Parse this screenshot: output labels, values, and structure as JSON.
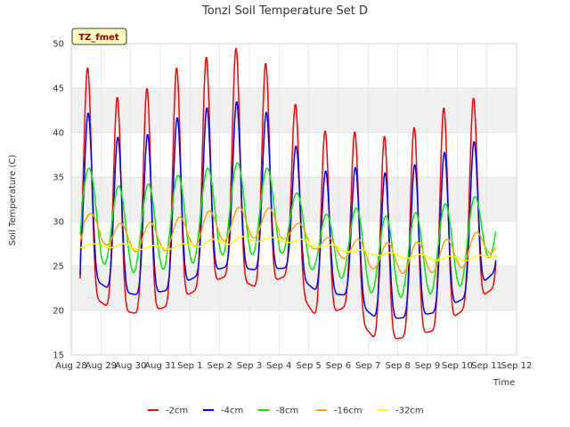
{
  "chart_data": {
    "type": "line",
    "title": "Tonzi Soil Temperature Set D",
    "xlabel": "Time",
    "ylabel": "Soil Temperature (C)",
    "badge": "TZ_fmet",
    "ylim": [
      15,
      50
    ],
    "yticks": [
      15,
      20,
      25,
      30,
      35,
      40,
      45,
      50
    ],
    "xlim": [
      0,
      15
    ],
    "xtick_labels": [
      "Aug 28",
      "Aug 29",
      "Aug 30",
      "Aug 31",
      "Sep 1",
      "Sep 2",
      "Sep 3",
      "Sep 4",
      "Sep 5",
      "Sep 6",
      "Sep 7",
      "Sep 8",
      "Sep 9",
      "Sep 10",
      "Sep 11",
      "Sep 12"
    ],
    "grid": true,
    "legend_position": "bottom",
    "data_start_day": 0.3,
    "data_end_day": 14.3,
    "series": [
      {
        "name": "-2cm",
        "color": "#ff0000",
        "daily_max": [
          47.3,
          44.0,
          45.0,
          47.3,
          48.5,
          49.5,
          47.8,
          43.2,
          40.2,
          40.1,
          39.6,
          40.6,
          42.8,
          43.9
        ],
        "daily_min": [
          22.7,
          20.2,
          19.6,
          20.5,
          22.5,
          24.0,
          22.5,
          24.0,
          19.0,
          20.5,
          16.5,
          17.0,
          17.8,
          20.3,
          22.7
        ]
      },
      {
        "name": "-4cm",
        "color": "#0000ff",
        "daily_max": [
          42.2,
          39.5,
          39.8,
          41.7,
          42.8,
          43.5,
          42.3,
          38.5,
          35.7,
          36.1,
          35.5,
          36.4,
          37.8,
          39.0
        ],
        "daily_min": [
          24.5,
          22.3,
          21.7,
          22.3,
          24.0,
          25.0,
          24.5,
          24.8,
          22.0,
          21.7,
          19.0,
          19.2,
          19.8,
          21.5,
          24.5
        ]
      },
      {
        "name": "-8cm",
        "color": "#00ee00",
        "daily_max": [
          36.0,
          34.0,
          34.2,
          35.2,
          36.0,
          36.6,
          36.0,
          33.2,
          30.8,
          31.5,
          30.6,
          31.0,
          32.0,
          32.8
        ],
        "daily_min": [
          27.5,
          24.5,
          24.2,
          24.8,
          25.5,
          26.5,
          26.2,
          26.5,
          24.0,
          23.5,
          21.5,
          21.5,
          22.0,
          23.0,
          27.0
        ]
      },
      {
        "name": "-16cm",
        "color": "#ffa500",
        "daily_max": [
          30.9,
          29.8,
          29.9,
          30.5,
          31.2,
          31.6,
          31.5,
          29.8,
          28.2,
          28.0,
          27.6,
          27.7,
          28.0,
          28.8
        ],
        "daily_min": [
          28.6,
          27.0,
          26.5,
          26.8,
          27.3,
          28.0,
          28.2,
          28.0,
          26.6,
          25.6,
          24.4,
          24.1,
          24.3,
          25.0,
          27.0
        ]
      },
      {
        "name": "-32cm",
        "color": "#ffff00",
        "daily_max": [
          27.5,
          27.5,
          27.3,
          27.5,
          28.0,
          28.3,
          28.2,
          28.0,
          27.4,
          26.8,
          26.5,
          26.3,
          26.1,
          26.2
        ],
        "daily_min": [
          27.3,
          27.0,
          26.8,
          26.9,
          27.2,
          27.5,
          27.8,
          27.6,
          27.0,
          26.5,
          26.1,
          25.8,
          25.6,
          25.6,
          26.3
        ]
      }
    ]
  }
}
